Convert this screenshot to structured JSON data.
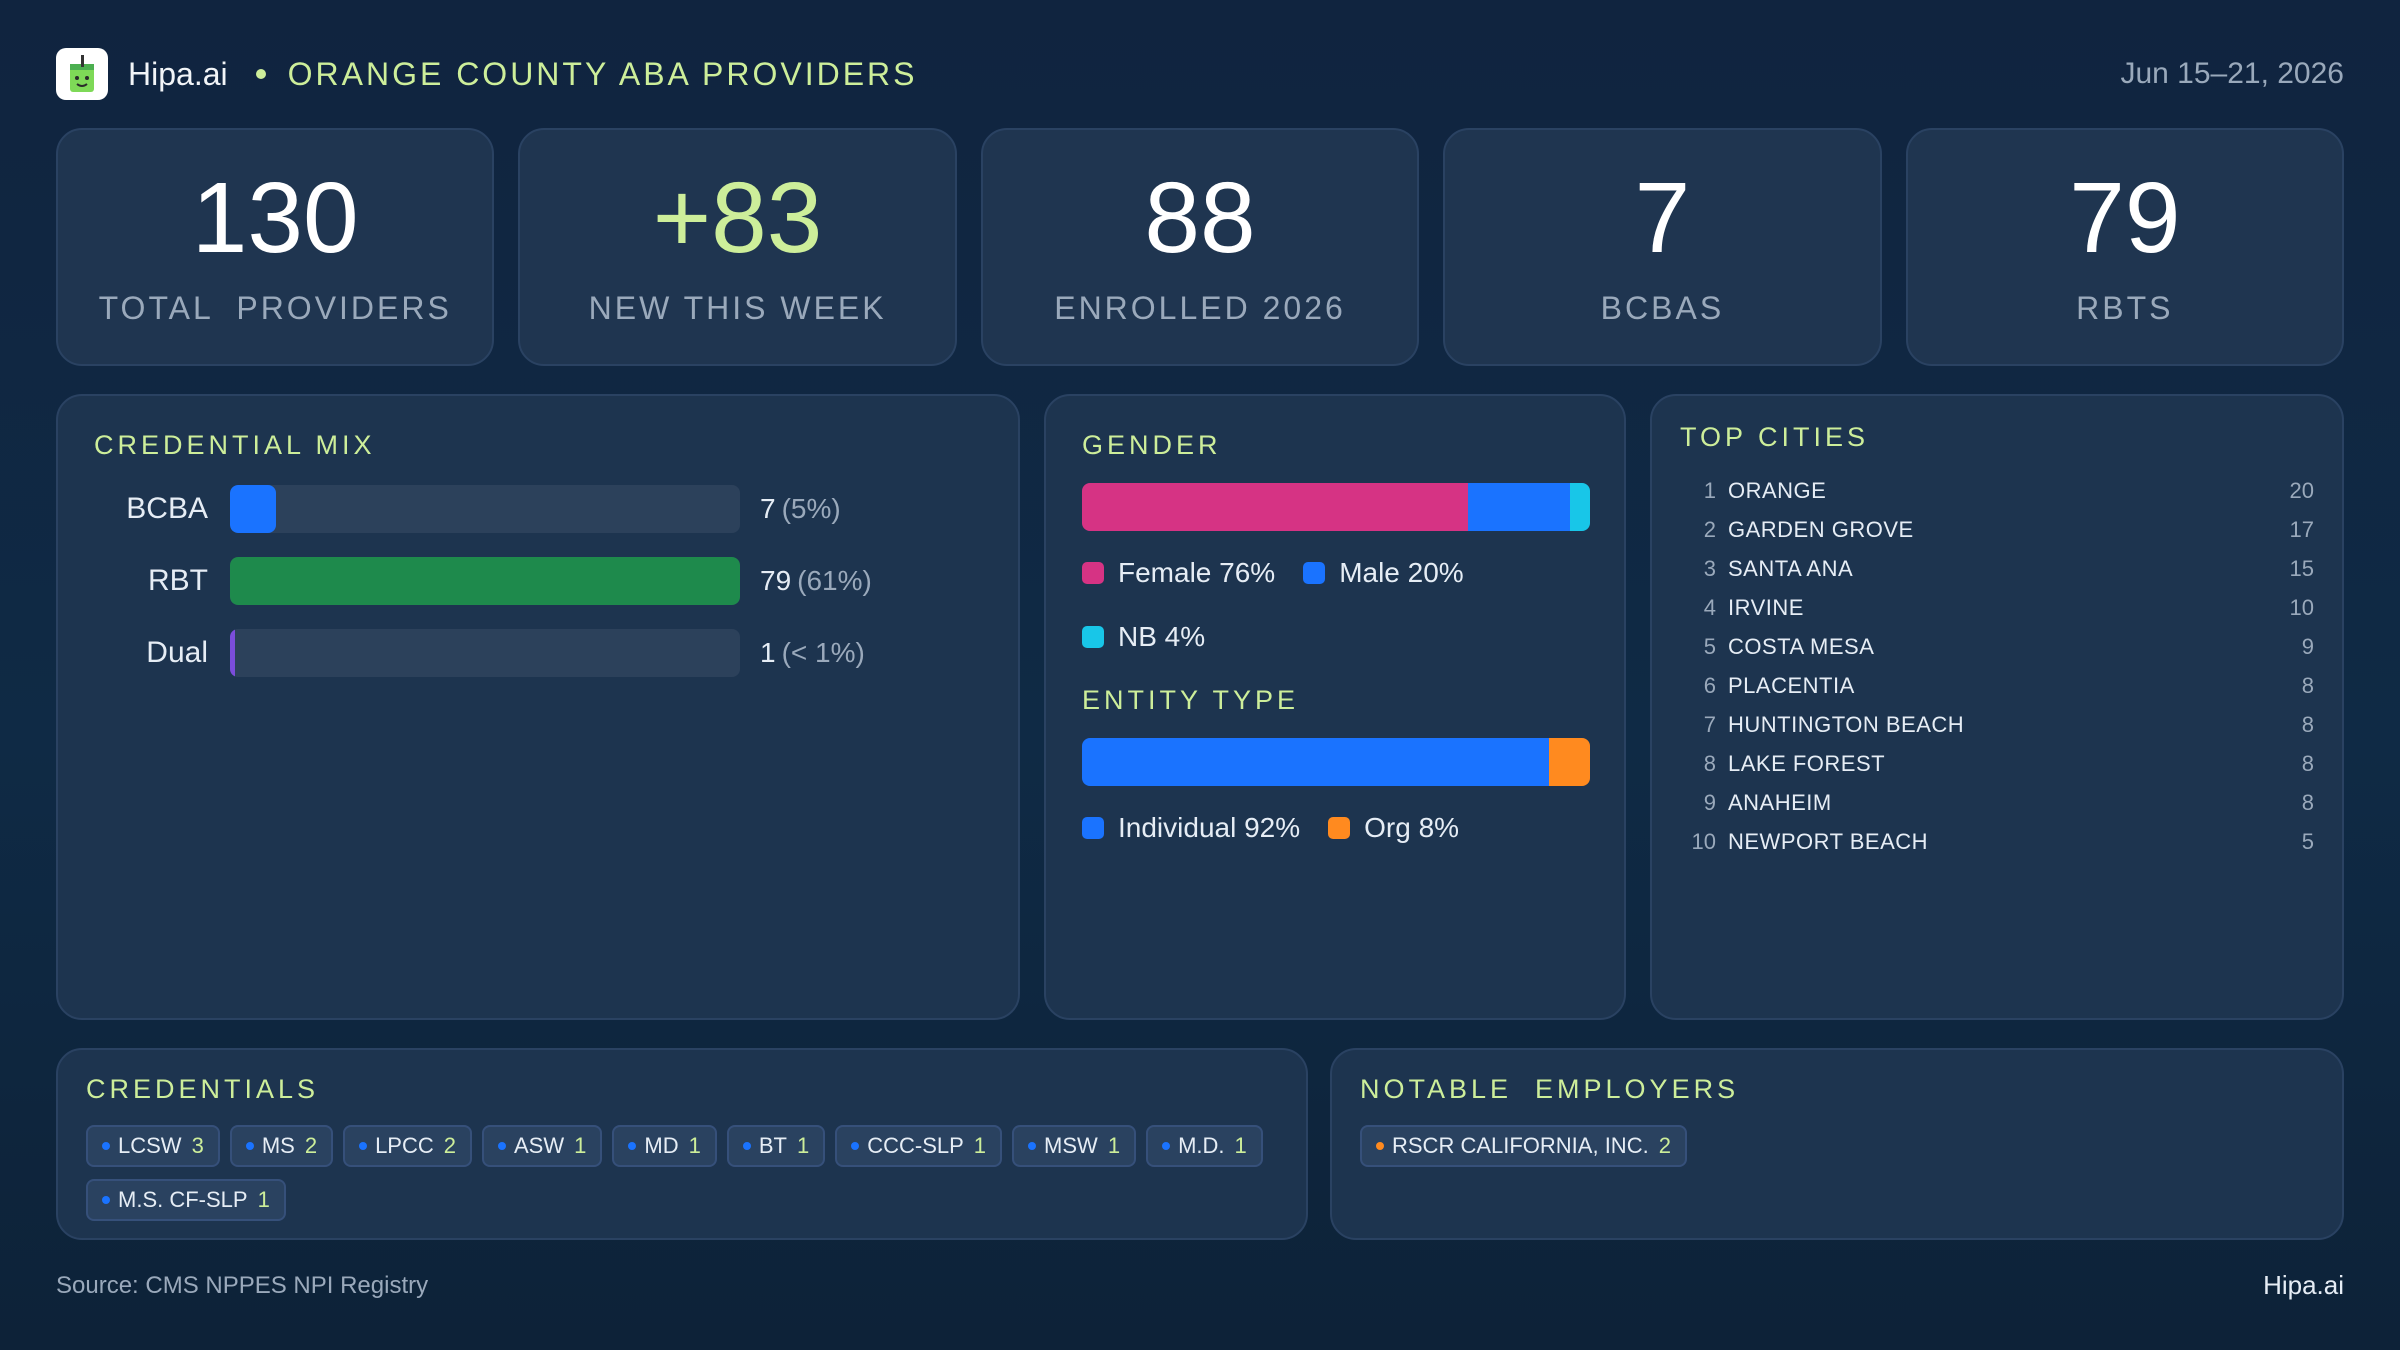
{
  "header": {
    "brand": "Hipa.ai",
    "title": "ORANGE COUNTY ABA PROVIDERS",
    "date_range": "Jun 15–21, 2026",
    "logo_icon": "drink-cup-icon"
  },
  "kpis": [
    {
      "value": "130",
      "label": "TOTAL  PROVIDERS"
    },
    {
      "value": "+83",
      "label": "NEW THIS WEEK"
    },
    {
      "value": "88",
      "label": "ENROLLED 2026"
    },
    {
      "value": "7",
      "label": "BCBAS"
    },
    {
      "value": "79",
      "label": "RBTS"
    }
  ],
  "credential_mix": {
    "title": "CREDENTIAL MIX",
    "rows": [
      {
        "label": "BCBA",
        "count": "7",
        "pct": "(5%)",
        "fraction": 0.09,
        "color": "#1a73ff"
      },
      {
        "label": "RBT",
        "count": "79",
        "pct": "(61%)",
        "fraction": 1.0,
        "color": "#1e8a4c"
      },
      {
        "label": "Dual",
        "count": "1",
        "pct": "(< 1%)",
        "fraction": 0.012,
        "color": "#7b4ddb"
      }
    ]
  },
  "gender": {
    "title": "GENDER",
    "segments": [
      {
        "label": "Female 76%",
        "share": 76,
        "color": "#d63384"
      },
      {
        "label": "Male 20%",
        "share": 20,
        "color": "#1a73ff"
      },
      {
        "label": "NB 4%",
        "share": 4,
        "color": "#18c6e8"
      }
    ]
  },
  "entity_type": {
    "title": "ENTITY TYPE",
    "segments": [
      {
        "label": "Individual 92%",
        "share": 92,
        "color": "#1a73ff"
      },
      {
        "label": "Org 8%",
        "share": 8,
        "color": "#ff8a1f"
      }
    ]
  },
  "top_cities": {
    "title": "TOP CITIES",
    "items": [
      {
        "rank": "1",
        "name": "ORANGE",
        "count": "20"
      },
      {
        "rank": "2",
        "name": "GARDEN GROVE",
        "count": "17"
      },
      {
        "rank": "3",
        "name": "SANTA ANA",
        "count": "15"
      },
      {
        "rank": "4",
        "name": "IRVINE",
        "count": "10"
      },
      {
        "rank": "5",
        "name": "COSTA MESA",
        "count": "9"
      },
      {
        "rank": "6",
        "name": "PLACENTIA",
        "count": "8"
      },
      {
        "rank": "7",
        "name": "HUNTINGTON BEACH",
        "count": "8"
      },
      {
        "rank": "8",
        "name": "LAKE FOREST",
        "count": "8"
      },
      {
        "rank": "9",
        "name": "ANAHEIM",
        "count": "8"
      },
      {
        "rank": "10",
        "name": "NEWPORT BEACH",
        "count": "5"
      }
    ]
  },
  "credentials": {
    "title": "CREDENTIALS",
    "chips": [
      {
        "name": "LCSW",
        "count": "3"
      },
      {
        "name": "MS",
        "count": "2"
      },
      {
        "name": "LPCC",
        "count": "2"
      },
      {
        "name": "ASW",
        "count": "1"
      },
      {
        "name": "MD",
        "count": "1"
      },
      {
        "name": "BT",
        "count": "1"
      },
      {
        "name": "CCC-SLP",
        "count": "1"
      },
      {
        "name": "MSW",
        "count": "1"
      },
      {
        "name": "M.D.",
        "count": "1"
      },
      {
        "name": "M.S. CF-SLP",
        "count": "1"
      }
    ]
  },
  "employers": {
    "title": "NOTABLE  EMPLOYERS",
    "chips": [
      {
        "name": "RSCR CALIFORNIA, INC.",
        "count": "2"
      }
    ]
  },
  "footer": {
    "source": "Source: CMS NPPES NPI Registry",
    "brand": "Hipa.ai"
  }
}
